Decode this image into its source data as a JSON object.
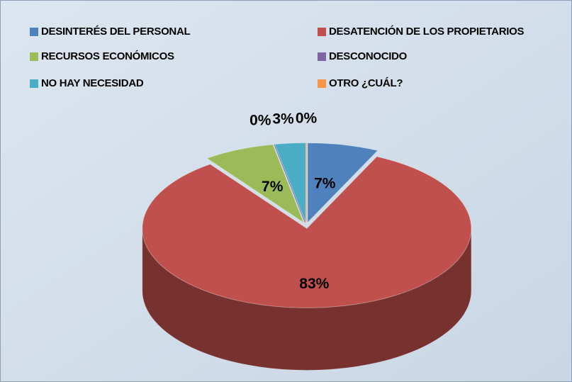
{
  "chart_data": {
    "type": "pie",
    "categories": [
      "DESINTERÉS DEL PERSONAL",
      "DESATENCIÓN DE LOS PROPIETARIOS",
      "RECURSOS ECONÓMICOS",
      "DESCONOCIDO",
      "NO HAY NECESIDAD",
      "OTRO ¿CUÁL?"
    ],
    "values": [
      7,
      83,
      7,
      0,
      3,
      0
    ],
    "value_labels": [
      "7%",
      "83%",
      "7%",
      "0%",
      "3%",
      "0%"
    ],
    "colors": [
      "#4f81bd",
      "#c0504d",
      "#9bbb59",
      "#8064a2",
      "#4bacc6",
      "#f79646"
    ],
    "legend": "top"
  }
}
